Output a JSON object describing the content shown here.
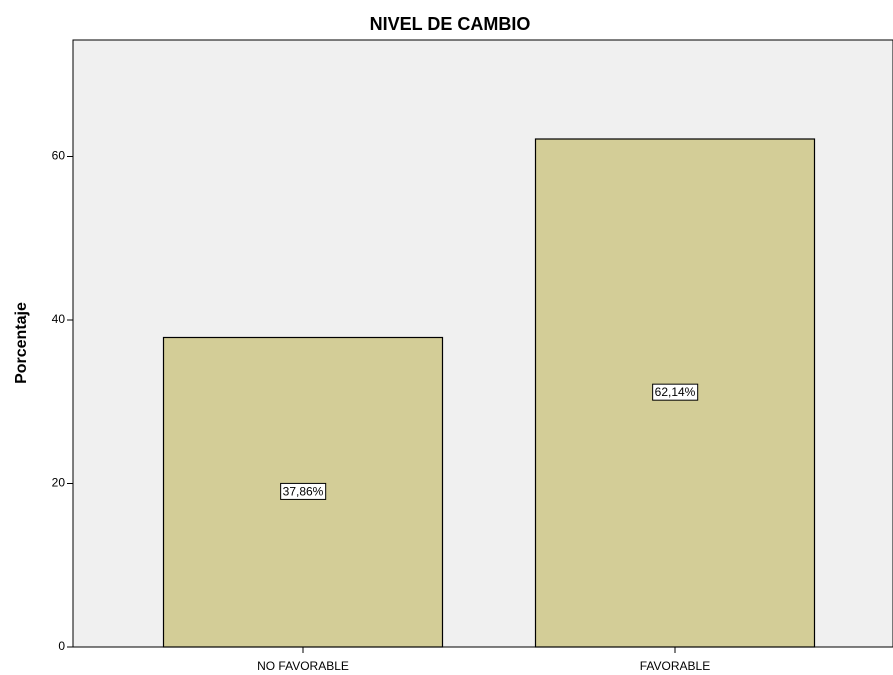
{
  "chart_data": {
    "type": "bar",
    "title": "NIVEL DE CAMBIO",
    "y_label": "Porcentaje",
    "categories": [
      "NO FAVORABLE",
      "FAVORABLE"
    ],
    "values": [
      37.86,
      62.14
    ],
    "value_labels": [
      "37,86%",
      "62,14%"
    ],
    "color": "#d3cd97",
    "ylim": [
      0,
      74.25
    ],
    "yticks": [
      0,
      20,
      40,
      60
    ],
    "grid": false
  }
}
